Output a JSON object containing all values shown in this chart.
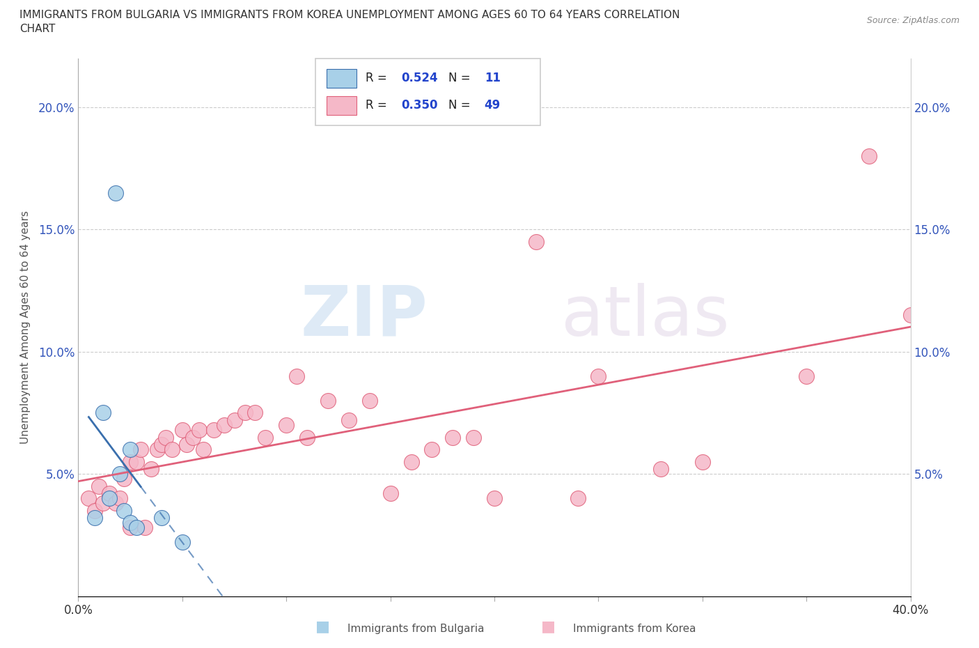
{
  "title_line1": "IMMIGRANTS FROM BULGARIA VS IMMIGRANTS FROM KOREA UNEMPLOYMENT AMONG AGES 60 TO 64 YEARS CORRELATION",
  "title_line2": "CHART",
  "source": "Source: ZipAtlas.com",
  "ylabel": "Unemployment Among Ages 60 to 64 years",
  "watermark_zip": "ZIP",
  "watermark_atlas": "atlas",
  "xlim": [
    0.0,
    0.4
  ],
  "ylim": [
    0.0,
    0.22
  ],
  "xticks": [
    0.0,
    0.05,
    0.1,
    0.15,
    0.2,
    0.25,
    0.3,
    0.35,
    0.4
  ],
  "yticks": [
    0.0,
    0.05,
    0.1,
    0.15,
    0.2
  ],
  "bulgaria_R": 0.524,
  "bulgaria_N": 11,
  "korea_R": 0.35,
  "korea_N": 49,
  "bulgaria_color": "#a8d0e8",
  "korea_color": "#f5b8c8",
  "bulgaria_line_color": "#3a6fad",
  "korea_line_color": "#e0607a",
  "bulgaria_scatter_x": [
    0.008,
    0.012,
    0.015,
    0.018,
    0.02,
    0.022,
    0.025,
    0.025,
    0.028,
    0.04,
    0.05
  ],
  "bulgaria_scatter_y": [
    0.032,
    0.075,
    0.04,
    0.165,
    0.05,
    0.035,
    0.06,
    0.03,
    0.028,
    0.032,
    0.022
  ],
  "korea_scatter_x": [
    0.005,
    0.008,
    0.01,
    0.012,
    0.015,
    0.018,
    0.02,
    0.022,
    0.025,
    0.025,
    0.028,
    0.03,
    0.032,
    0.035,
    0.038,
    0.04,
    0.042,
    0.045,
    0.05,
    0.052,
    0.055,
    0.058,
    0.06,
    0.065,
    0.07,
    0.075,
    0.08,
    0.085,
    0.09,
    0.1,
    0.105,
    0.11,
    0.12,
    0.13,
    0.14,
    0.15,
    0.16,
    0.17,
    0.18,
    0.19,
    0.2,
    0.22,
    0.24,
    0.25,
    0.28,
    0.3,
    0.35,
    0.38,
    0.4
  ],
  "korea_scatter_y": [
    0.04,
    0.035,
    0.045,
    0.038,
    0.042,
    0.038,
    0.04,
    0.048,
    0.055,
    0.028,
    0.055,
    0.06,
    0.028,
    0.052,
    0.06,
    0.062,
    0.065,
    0.06,
    0.068,
    0.062,
    0.065,
    0.068,
    0.06,
    0.068,
    0.07,
    0.072,
    0.075,
    0.075,
    0.065,
    0.07,
    0.09,
    0.065,
    0.08,
    0.072,
    0.08,
    0.042,
    0.055,
    0.06,
    0.065,
    0.065,
    0.04,
    0.145,
    0.04,
    0.09,
    0.052,
    0.055,
    0.09,
    0.18,
    0.115
  ],
  "background_color": "#ffffff",
  "grid_color": "#cccccc"
}
